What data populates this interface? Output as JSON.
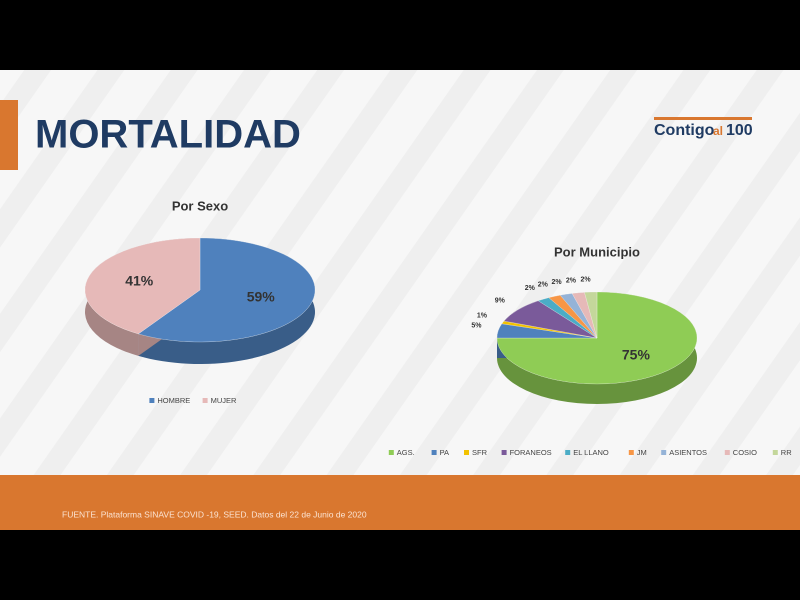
{
  "title": "MORTALIDAD",
  "logo": [
    "Contigo",
    "al",
    "100"
  ],
  "source": "FUENTE. Plataforma SINAVE COVID -19, SEED. Datos del 22 de Junio de 2020",
  "chart_data": [
    {
      "type": "pie",
      "title": "Por Sexo",
      "categories": [
        "HOMBRE",
        "MUJER"
      ],
      "values": [
        59,
        41
      ],
      "value_labels": [
        "59%",
        "41%"
      ],
      "colors": [
        "#4f81bd",
        "#e6b9b8"
      ],
      "legend": "bottom"
    },
    {
      "type": "pie",
      "title": "Por Municipio",
      "categories": [
        "AGS.",
        "PA",
        "SFR",
        "FORANEOS",
        "EL LLANO",
        "JM",
        "ASIENTOS",
        "COSIO",
        "RR"
      ],
      "values": [
        75,
        5,
        1,
        9,
        2,
        2,
        2,
        2,
        2
      ],
      "value_labels": [
        "75%",
        "5%",
        "1%",
        "9%",
        "2%",
        "2%",
        "2%",
        "2%",
        "2%"
      ],
      "colors": [
        "#8fcc55",
        "#4f81bd",
        "#f2c200",
        "#7a5a9a",
        "#4bacc6",
        "#f79646",
        "#95b3d7",
        "#e6b9b8",
        "#c4d79b"
      ],
      "legend": "bottom"
    }
  ]
}
